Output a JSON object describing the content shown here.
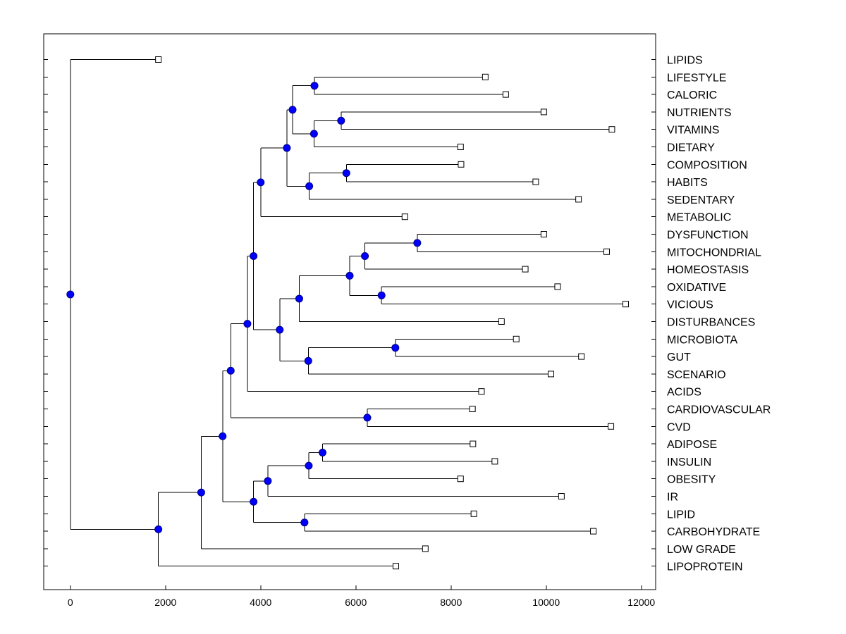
{
  "chart_data": {
    "type": "dendrogram",
    "title": "",
    "xlabel": "",
    "ylabel": "",
    "xlim": [
      -560,
      12300
    ],
    "x_ticks": [
      0,
      2000,
      4000,
      6000,
      8000,
      10000,
      12000
    ],
    "x_tick_labels": [
      "0",
      "2000",
      "4000",
      "6000",
      "8000",
      "10000",
      "12000"
    ],
    "colors": {
      "node": "#0000ff",
      "node_edge": "#000080",
      "leaf": "#ffffff",
      "line": "#000000"
    },
    "leaves": [
      {
        "label": "LIPIDS",
        "value": 1850
      },
      {
        "label": "LIFESTYLE",
        "value": 8720
      },
      {
        "label": "CALORIC",
        "value": 9150
      },
      {
        "label": "NUTRIENTS",
        "value": 9950
      },
      {
        "label": "VITAMINS",
        "value": 11380
      },
      {
        "label": "DIETARY",
        "value": 8200
      },
      {
        "label": "COMPOSITION",
        "value": 8210
      },
      {
        "label": "HABITS",
        "value": 9780
      },
      {
        "label": "SEDENTARY",
        "value": 10680
      },
      {
        "label": "METABOLIC",
        "value": 7030
      },
      {
        "label": "DYSFUNCTION",
        "value": 9950
      },
      {
        "label": "MITOCHONDRIAL",
        "value": 11270
      },
      {
        "label": "HOMEOSTASIS",
        "value": 9560
      },
      {
        "label": "OXIDATIVE",
        "value": 10240
      },
      {
        "label": "VICIOUS",
        "value": 11670
      },
      {
        "label": "DISTURBANCES",
        "value": 9060
      },
      {
        "label": "MICROBIOTA",
        "value": 9370
      },
      {
        "label": "GUT",
        "value": 10740
      },
      {
        "label": "SCENARIO",
        "value": 10100
      },
      {
        "label": "ACIDS",
        "value": 8640
      },
      {
        "label": "CARDIOVASCULAR",
        "value": 8450
      },
      {
        "label": "CVD",
        "value": 11360
      },
      {
        "label": "ADIPOSE",
        "value": 8460
      },
      {
        "label": "INSULIN",
        "value": 8920
      },
      {
        "label": "OBESITY",
        "value": 8200
      },
      {
        "label": "IR",
        "value": 10320
      },
      {
        "label": "LIPID",
        "value": 8480
      },
      {
        "label": "CARBOHYDRATE",
        "value": 10990
      },
      {
        "label": "LOW GRADE",
        "value": 7460
      },
      {
        "label": "LIPOPROTEIN",
        "value": 6840
      }
    ],
    "nodes": [
      {
        "id": "n_lc",
        "value": 5130,
        "children": [
          "LIFESTYLE",
          "CALORIC"
        ]
      },
      {
        "id": "n_nv",
        "value": 5690,
        "children": [
          "NUTRIENTS",
          "VITAMINS"
        ]
      },
      {
        "id": "n_nvd",
        "value": 5120,
        "children": [
          "n_nv",
          "DIETARY"
        ]
      },
      {
        "id": "n_life",
        "value": 4670,
        "children": [
          "n_lc",
          "n_nvd"
        ]
      },
      {
        "id": "n_ch",
        "value": 5800,
        "children": [
          "COMPOSITION",
          "HABITS"
        ]
      },
      {
        "id": "n_chs",
        "value": 5020,
        "children": [
          "n_ch",
          "SEDENTARY"
        ]
      },
      {
        "id": "n_diet",
        "value": 4550,
        "children": [
          "n_life",
          "n_chs"
        ]
      },
      {
        "id": "n_meta",
        "value": 4000,
        "children": [
          "n_diet",
          "METABOLIC"
        ]
      },
      {
        "id": "n_dm",
        "value": 7290,
        "children": [
          "DYSFUNCTION",
          "MITOCHONDRIAL"
        ]
      },
      {
        "id": "n_dmh",
        "value": 6190,
        "children": [
          "n_dm",
          "HOMEOSTASIS"
        ]
      },
      {
        "id": "n_ov",
        "value": 6540,
        "children": [
          "OXIDATIVE",
          "VICIOUS"
        ]
      },
      {
        "id": "n_mito",
        "value": 5870,
        "children": [
          "n_dmh",
          "n_ov"
        ]
      },
      {
        "id": "n_dist",
        "value": 4810,
        "children": [
          "n_mito",
          "DISTURBANCES"
        ]
      },
      {
        "id": "n_mg",
        "value": 6830,
        "children": [
          "MICROBIOTA",
          "GUT"
        ]
      },
      {
        "id": "n_mgs",
        "value": 5000,
        "children": [
          "n_mg",
          "SCENARIO"
        ]
      },
      {
        "id": "n_ox",
        "value": 4400,
        "children": [
          "n_dist",
          "n_mgs"
        ]
      },
      {
        "id": "n_big",
        "value": 3850,
        "children": [
          "n_meta",
          "n_ox"
        ]
      },
      {
        "id": "n_acid",
        "value": 3720,
        "children": [
          "n_big",
          "ACIDS"
        ]
      },
      {
        "id": "n_cv",
        "value": 6240,
        "children": [
          "CARDIOVASCULAR",
          "CVD"
        ]
      },
      {
        "id": "n_card",
        "value": 3370,
        "children": [
          "n_acid",
          "n_cv"
        ]
      },
      {
        "id": "n_ai",
        "value": 5300,
        "children": [
          "ADIPOSE",
          "INSULIN"
        ]
      },
      {
        "id": "n_aio",
        "value": 5010,
        "children": [
          "n_ai",
          "OBESITY"
        ]
      },
      {
        "id": "n_aioi",
        "value": 4150,
        "children": [
          "n_aio",
          "IR"
        ]
      },
      {
        "id": "n_lcarb",
        "value": 4920,
        "children": [
          "LIPID",
          "CARBOHYDRATE"
        ]
      },
      {
        "id": "n_ir",
        "value": 3850,
        "children": [
          "n_aioi",
          "n_lcarb"
        ]
      },
      {
        "id": "n_main",
        "value": 3200,
        "children": [
          "n_card",
          "n_ir"
        ]
      },
      {
        "id": "n_low",
        "value": 2750,
        "children": [
          "n_main",
          "LOW GRADE"
        ]
      },
      {
        "id": "n_lp",
        "value": 1850,
        "children": [
          "n_low",
          "LIPOPROTEIN"
        ]
      },
      {
        "id": "root",
        "value": 0,
        "children": [
          "LIPIDS",
          "n_lp"
        ]
      }
    ]
  }
}
